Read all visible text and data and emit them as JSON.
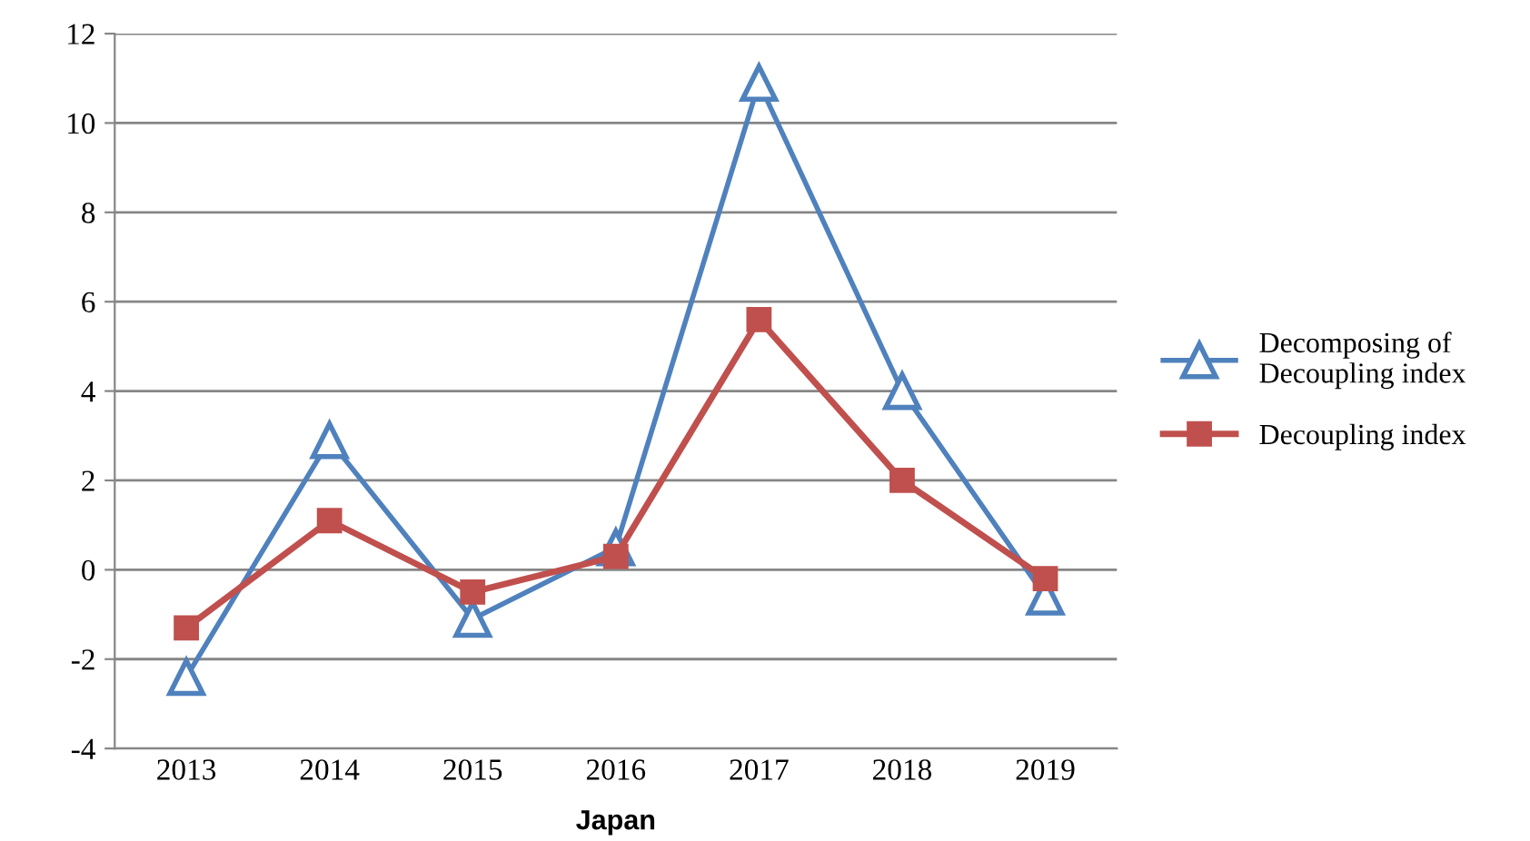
{
  "chart_data": {
    "type": "line",
    "xlabel": "Japan",
    "categories": [
      "2013",
      "2014",
      "2015",
      "2016",
      "2017",
      "2018",
      "2019"
    ],
    "series": [
      {
        "name": "Decomposing of\nDecoupling index",
        "color": "#4f81bd",
        "marker": "triangle",
        "values": [
          -2.4,
          2.9,
          -1.1,
          0.5,
          10.9,
          4.0,
          -0.6
        ]
      },
      {
        "name": "Decoupling index",
        "color": "#c0504d",
        "marker": "square",
        "values": [
          -1.3,
          1.1,
          -0.5,
          0.3,
          5.6,
          2.0,
          -0.2
        ]
      }
    ],
    "ylim": [
      -4,
      12
    ],
    "yticks": [
      -4,
      -2,
      0,
      2,
      4,
      6,
      8,
      10,
      12
    ],
    "grid": "y",
    "legend": "right",
    "line_style": "solid"
  }
}
